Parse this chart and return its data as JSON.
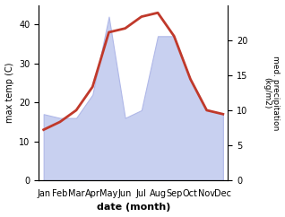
{
  "months": [
    "Jan",
    "Feb",
    "Mar",
    "Apr",
    "May",
    "Jun",
    "Jul",
    "Aug",
    "Sep",
    "Oct",
    "Nov",
    "Dec"
  ],
  "temperature": [
    13,
    15,
    18,
    24,
    38,
    39,
    42,
    43,
    37,
    26,
    18,
    17
  ],
  "precipitation": [
    17,
    16,
    16,
    22,
    42,
    16,
    18,
    37,
    37,
    26,
    18,
    17
  ],
  "temp_color": "#c0392b",
  "precip_color_fill": "#c8d0f0",
  "precip_color_edge": "#b0b8e8",
  "xlabel": "date (month)",
  "ylabel_left": "max temp (C)",
  "ylabel_right": "med. precipitation\n(kg/m2)",
  "ylim_left": [
    0,
    45
  ],
  "ylim_right": [
    0,
    25
  ],
  "yticks_left": [
    0,
    10,
    20,
    30,
    40
  ],
  "yticks_right": [
    0,
    5,
    10,
    15,
    20
  ],
  "background_color": "#ffffff"
}
